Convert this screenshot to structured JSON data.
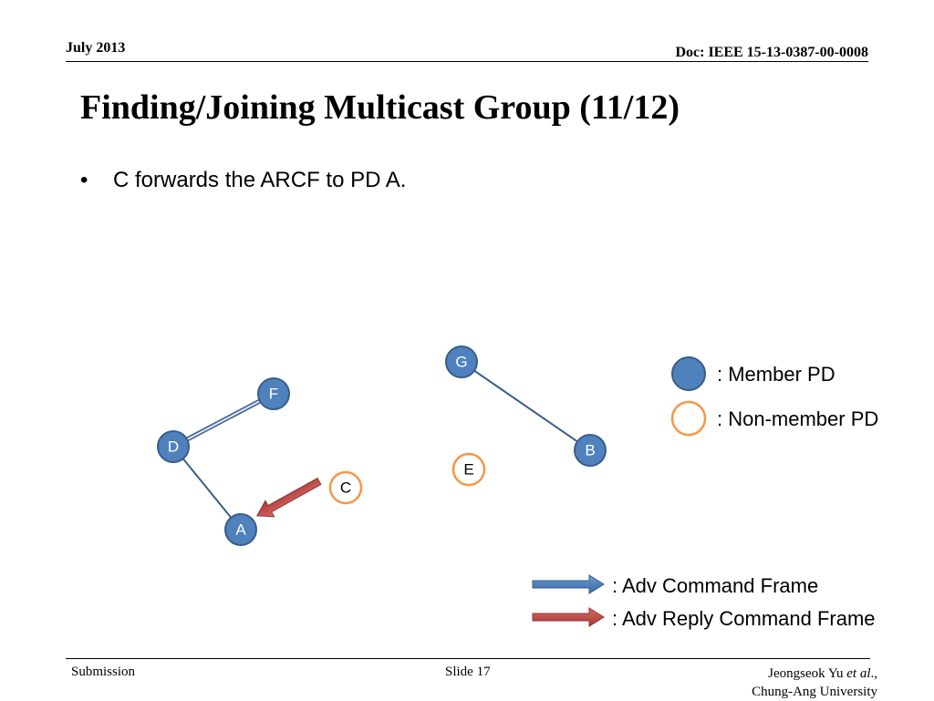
{
  "header": {
    "date": "July 2013",
    "doc_id": "Doc: IEEE 15-13-0387-00-0008"
  },
  "title": "Finding/Joining Multicast Group (11/12)",
  "bullets": [
    {
      "marker": "•",
      "text": "C forwards the ARCF to PD A."
    }
  ],
  "diagram": {
    "nodes": {
      "F": {
        "label": "F",
        "type": "member"
      },
      "D": {
        "label": "D",
        "type": "member"
      },
      "A": {
        "label": "A",
        "type": "member"
      },
      "G": {
        "label": "G",
        "type": "member"
      },
      "B": {
        "label": "B",
        "type": "member"
      },
      "E": {
        "label": "E",
        "type": "non-member"
      },
      "C": {
        "label": "C",
        "type": "non-member"
      }
    },
    "links": [
      [
        "D",
        "F"
      ],
      [
        "D",
        "A"
      ],
      [
        "G",
        "B"
      ]
    ],
    "frames": [
      {
        "from": "C",
        "to": "A",
        "kind": "adv-reply-command-frame"
      }
    ]
  },
  "legend": {
    "member_label": ": Member PD",
    "non_member_label": ": Non-member PD",
    "adv_command_label": ": Adv Command Frame",
    "adv_reply_label": ": Adv Reply Command Frame"
  },
  "colors": {
    "member_fill": "#4F81BD",
    "member_stroke": "#385D8A",
    "non_member_stroke": "#F79646",
    "link": "#385D8A",
    "adv_command_arrow": "#4F81BD",
    "adv_reply_arrow": "#C0504D"
  },
  "footer": {
    "left": "Submission",
    "center": "Slide 17",
    "author": "Jeongseok Yu",
    "author_etal": "et al",
    "author_tail": ".,",
    "affiliation": "Chung-Ang University"
  }
}
